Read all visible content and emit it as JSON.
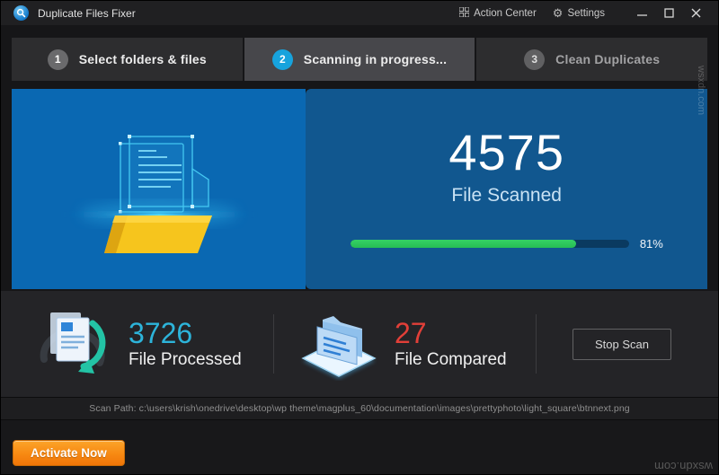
{
  "window": {
    "title": "Duplicate Files Fixer"
  },
  "titlebar": {
    "action_center_label": "Action Center",
    "settings_label": "Settings"
  },
  "tabs": [
    {
      "number": "1",
      "label": "Select folders & files",
      "state": "done"
    },
    {
      "number": "2",
      "label": "Scanning in progress...",
      "state": "active"
    },
    {
      "number": "3",
      "label": "Clean Duplicates",
      "state": "upcoming"
    }
  ],
  "scan_panel": {
    "count": "4575",
    "count_label": "File Scanned",
    "progress_percent": 81,
    "progress_label": "81%"
  },
  "stats": {
    "processed": {
      "value": "3726",
      "label": "File Processed"
    },
    "compared": {
      "value": "27",
      "label": "File Compared"
    },
    "stop_button_label": "Stop Scan"
  },
  "scan_path": "Scan Path: c:\\users\\krish\\onedrive\\desktop\\wp theme\\magplus_60\\documentation\\images\\prettyphoto\\light_square\\btnnext.png",
  "footer": {
    "activate_button_label": "Activate Now"
  },
  "watermark": {
    "text": "wsxdn.com"
  },
  "colors": {
    "accent_blue": "#17a3dd",
    "panel_blue_left": "#0a68b2",
    "panel_blue_right": "#11578f",
    "progress_green": "#2fc95e",
    "processed_cyan": "#2db4da",
    "compared_red": "#e23f38",
    "activate_orange": "#f78912",
    "folder_yellow": "#f6c51d"
  }
}
